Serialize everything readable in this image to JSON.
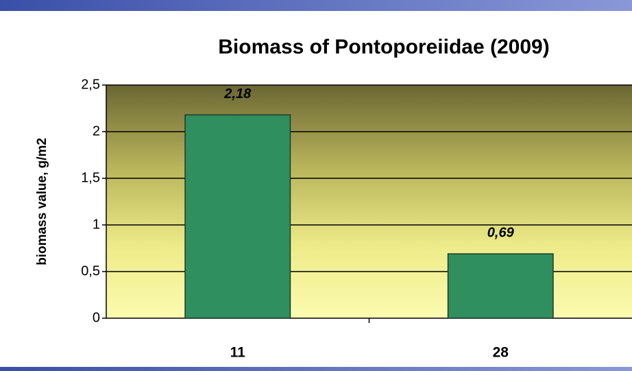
{
  "chart_data": {
    "type": "bar",
    "title": "Biomass of Pontoporeiidae (2009)",
    "y_label": "biomass value, g/m2",
    "categories": [
      "11",
      "28"
    ],
    "values": [
      2.18,
      0.69
    ],
    "value_labels": [
      "2,18",
      "0,69"
    ],
    "color": "#2f8f5e",
    "ylim": [
      0,
      2.5
    ],
    "yticks": [
      0,
      {
        "value": 0.5,
        "label": "0,5"
      },
      1,
      {
        "value": 1.5,
        "label": "1,5"
      },
      2,
      {
        "value": 2.5,
        "label": "2,5"
      }
    ],
    "grid": true
  }
}
